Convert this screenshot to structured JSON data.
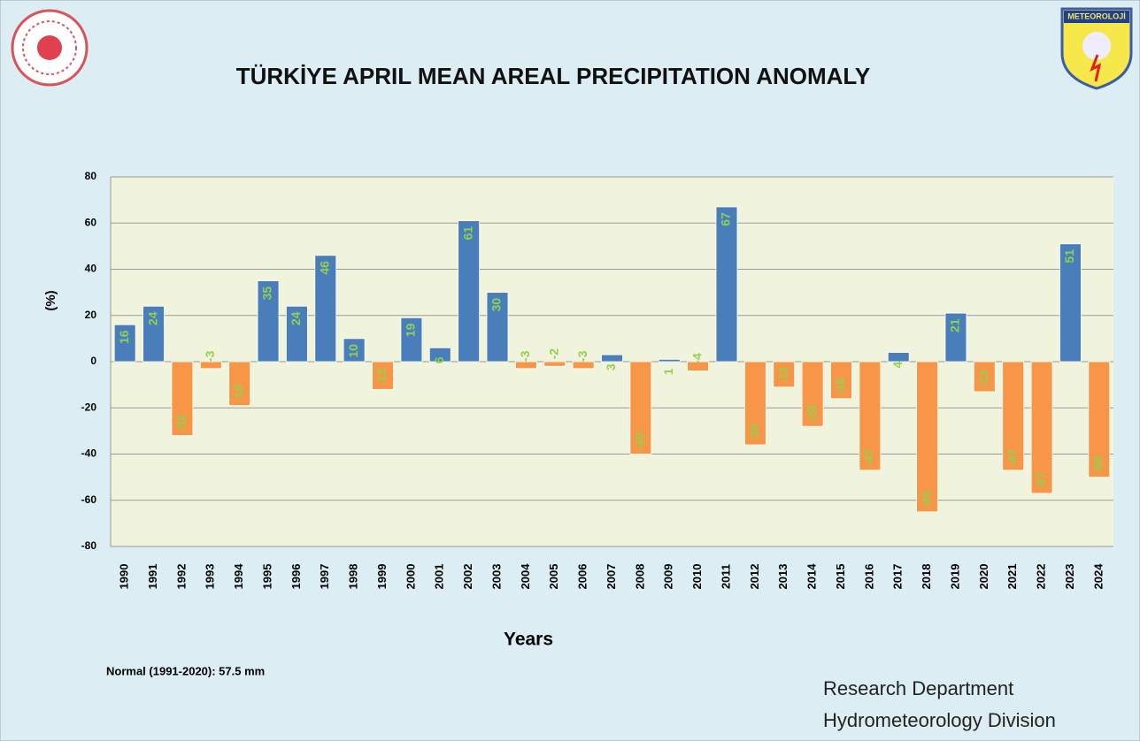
{
  "chart_data": {
    "type": "bar",
    "title": "TÜRKİYE APRIL MEAN AREAL PRECIPITATION ANOMALY",
    "y_label": "(%)",
    "x_label": "Years",
    "note": "Normal (1991-2020):  57.5 mm",
    "credit_lines": [
      "Research Department",
      "Hydrometeorology Division"
    ],
    "logo_text": "METEOROLOJİ",
    "categories": [
      "1990",
      "1991",
      "1992",
      "1993",
      "1994",
      "1995",
      "1996",
      "1997",
      "1998",
      "1999",
      "2000",
      "2001",
      "2002",
      "2003",
      "2004",
      "2005",
      "2006",
      "2007",
      "2008",
      "2009",
      "2010",
      "2011",
      "2012",
      "2013",
      "2014",
      "2015",
      "2016",
      "2017",
      "2018",
      "2019",
      "2020",
      "2021",
      "2022",
      "2023",
      "2024"
    ],
    "values": [
      16,
      24,
      -32,
      -3,
      -19,
      35,
      24,
      46,
      10,
      -12,
      19,
      6,
      61,
      30,
      -3,
      -2,
      -3,
      3,
      -40,
      1,
      -4,
      67,
      -36,
      -11,
      -28,
      -16,
      -47,
      4,
      -65,
      21,
      -13,
      -47,
      -57,
      51,
      -50
    ],
    "positive_color": "#4a7ebb",
    "negative_color": "#f79646",
    "label_color": "#92d050",
    "ylim": [
      -80,
      80
    ],
    "yticks": [
      -80,
      -60,
      -40,
      -20,
      0,
      20,
      40,
      60,
      80
    ],
    "grid": true
  }
}
